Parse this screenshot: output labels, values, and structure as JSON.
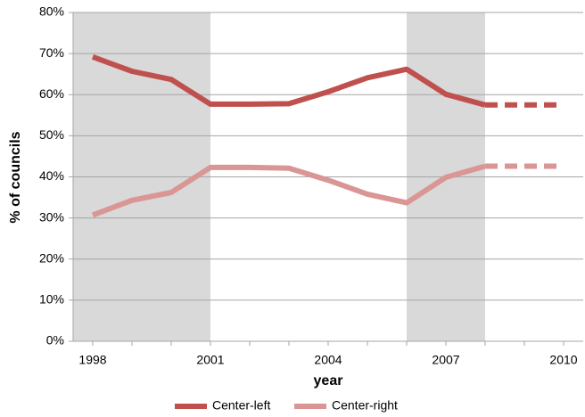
{
  "chart_data": {
    "type": "line",
    "x_label": "year",
    "y_label": "% of councils",
    "x": [
      1998,
      1999,
      2000,
      2001,
      2002,
      2003,
      2004,
      2005,
      2006,
      2007,
      2008,
      2009,
      2010
    ],
    "xlim": [
      1997.5,
      2010.5
    ],
    "xticks": [
      1998,
      2001,
      2004,
      2007,
      2010
    ],
    "ylim": [
      0,
      80
    ],
    "yticks": [
      {
        "value": 0,
        "label": "0%"
      },
      {
        "value": 10,
        "label": "10%"
      },
      {
        "value": 20,
        "label": "20%"
      },
      {
        "value": 30,
        "label": "30%"
      },
      {
        "value": 40,
        "label": "40%"
      },
      {
        "value": 50,
        "label": "50%"
      },
      {
        "value": 60,
        "label": "60%"
      },
      {
        "value": 70,
        "label": "70%"
      },
      {
        "value": 80,
        "label": "80%"
      }
    ],
    "grid": true,
    "legend": "bottom",
    "dashed_from": 2008,
    "shaded_ranges": [
      [
        1997.5,
        2001
      ],
      [
        2006,
        2008
      ]
    ],
    "shade_color": "#d9d9d9",
    "series": [
      {
        "name": "Center-left",
        "color": "#c0504d",
        "values": [
          69.2,
          65.7,
          63.7,
          57.7,
          57.7,
          57.8,
          60.7,
          64.1,
          66.2,
          60.1,
          57.5,
          57.5,
          57.5
        ]
      },
      {
        "name": "Center-right",
        "color": "#d99694",
        "values": [
          30.7,
          34.3,
          36.2,
          42.3,
          42.3,
          42.1,
          39.2,
          35.8,
          33.7,
          39.9,
          42.6,
          42.6,
          42.6
        ]
      }
    ]
  }
}
